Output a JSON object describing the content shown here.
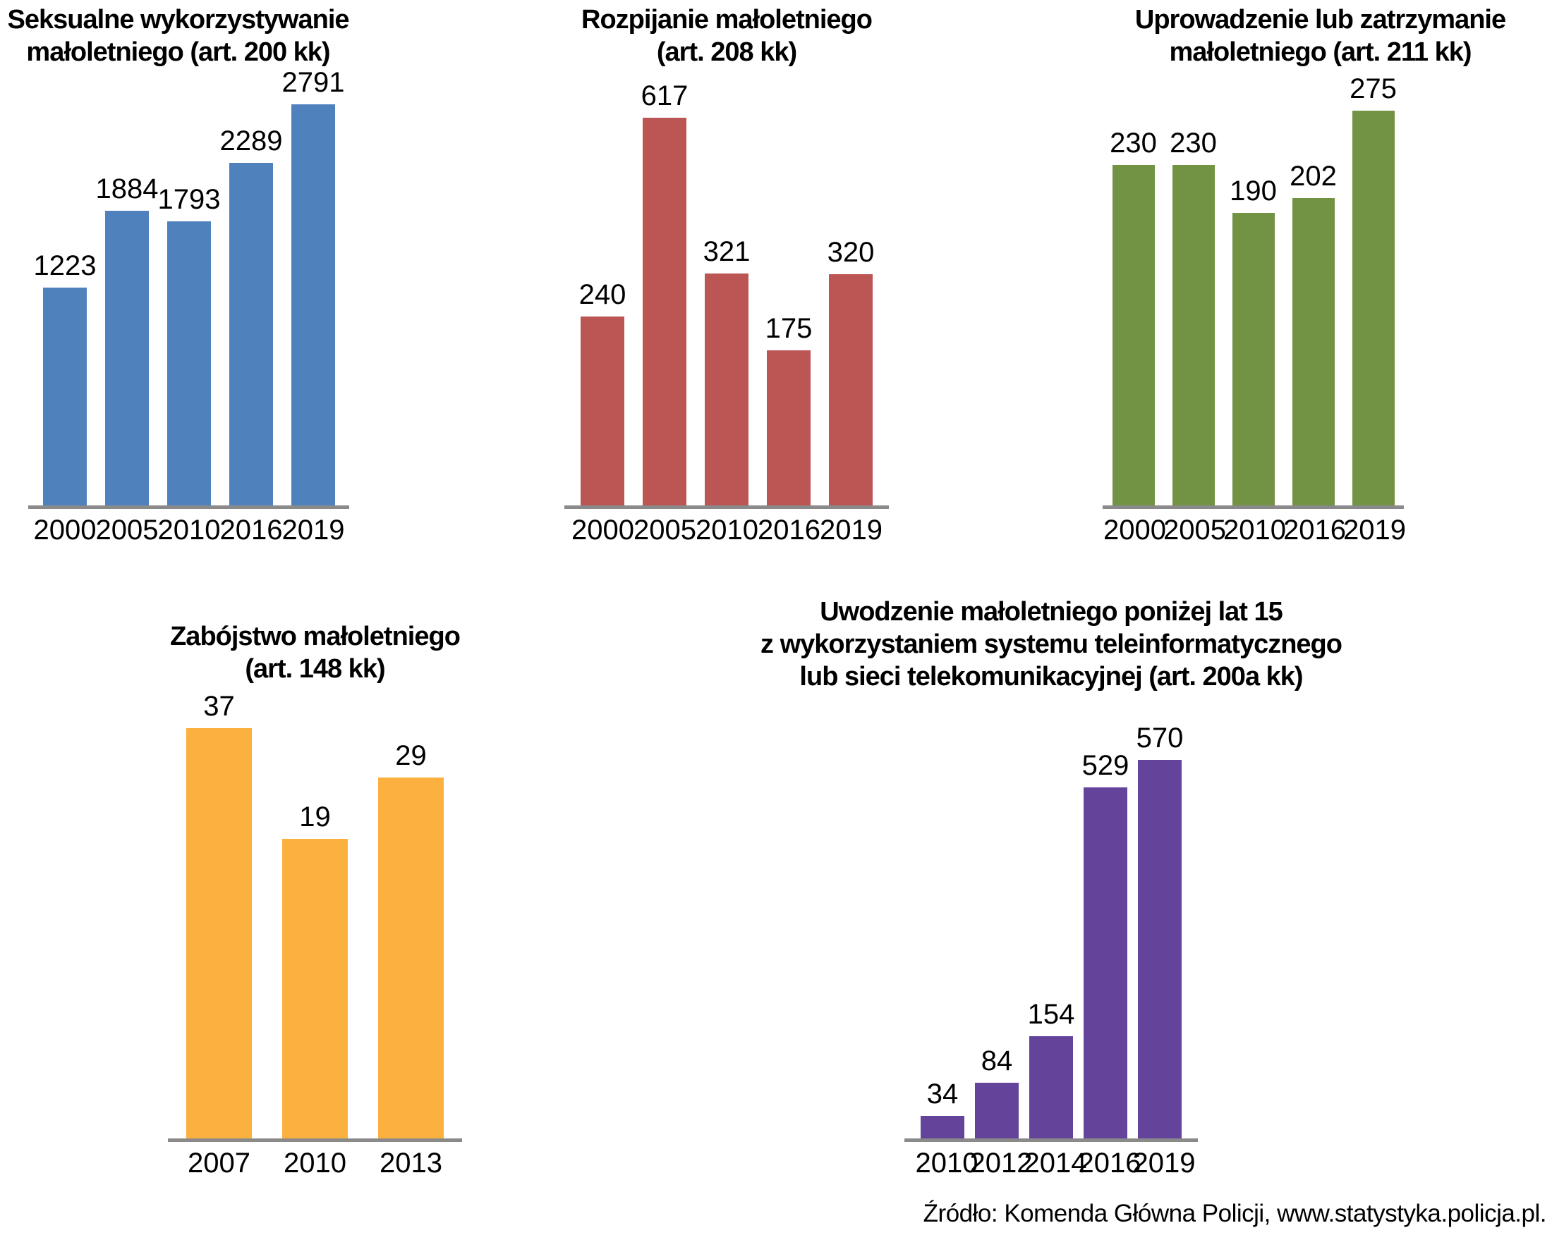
{
  "page": {
    "background": "#ffffff",
    "axis_color": "#8a8a8a",
    "source_note": "Źródło: Komenda Główna Policji, www.statystyka.policja.pl."
  },
  "chart_data": [
    {
      "type": "bar",
      "title": "Seksualne wykorzystywanie małoletniego (art. 200 kk)",
      "title_lines": [
        "Seksualne wykorzystywanie",
        "małoletniego (art. 200 kk)"
      ],
      "categories": [
        "2000",
        "2005",
        "2010",
        "2016",
        "2019"
      ],
      "values": [
        1223,
        1884,
        1793,
        2289,
        2791
      ],
      "bar_color": "#4f81bd",
      "xlabel": "",
      "ylabel": "",
      "legend": "none",
      "grid": "off",
      "data_labels": "above-bars"
    },
    {
      "type": "bar",
      "title": "Rozpijanie małoletniego (art. 208 kk)",
      "title_lines": [
        "Rozpijanie małoletniego",
        "(art. 208 kk)"
      ],
      "categories": [
        "2000",
        "2005",
        "2010",
        "2016",
        "2019"
      ],
      "values": [
        240,
        617,
        321,
        175,
        320
      ],
      "bar_color": "#bc5654",
      "xlabel": "",
      "ylabel": "",
      "legend": "none",
      "grid": "off",
      "data_labels": "above-bars"
    },
    {
      "type": "bar",
      "title": "Uprowadzenie lub zatrzymanie małoletniego (art. 211 kk)",
      "title_lines": [
        "Uprowadzenie lub zatrzymanie",
        "małoletniego (art. 211 kk)"
      ],
      "categories": [
        "2000",
        "2005",
        "2010",
        "2016",
        "2019"
      ],
      "values": [
        230,
        230,
        190,
        202,
        275
      ],
      "bar_color": "#739344",
      "xlabel": "",
      "ylabel": "",
      "legend": "none",
      "grid": "off",
      "data_labels": "above-bars"
    },
    {
      "type": "bar",
      "title": "Zabójstwo małoletniego (art. 148 kk)",
      "title_lines": [
        "Zabójstwo małoletniego",
        "(art. 148 kk)"
      ],
      "categories": [
        "2007",
        "2010",
        "2013"
      ],
      "values": [
        37,
        19,
        29
      ],
      "bar_color": "#fbb040",
      "xlabel": "",
      "ylabel": "",
      "legend": "none",
      "grid": "off",
      "data_labels": "above-bars"
    },
    {
      "type": "bar",
      "title": "Uwodzenie małoletniego poniżej lat 15 z wykorzystaniem systemu teleinformatycznego lub sieci telekomunikacyjnej (art. 200a kk)",
      "title_lines": [
        "Uwodzenie małoletniego poniżej lat 15",
        "z wykorzystaniem systemu teleinformatycznego",
        "lub sieci telekomunikacyjnej (art. 200a kk)"
      ],
      "categories": [
        "2010",
        "2012",
        "2014",
        "2016",
        "2019"
      ],
      "values": [
        34,
        84,
        154,
        529,
        570
      ],
      "bar_color": "#64439b",
      "xlabel": "",
      "ylabel": "",
      "legend": "none",
      "grid": "off",
      "data_labels": "above-bars"
    }
  ]
}
